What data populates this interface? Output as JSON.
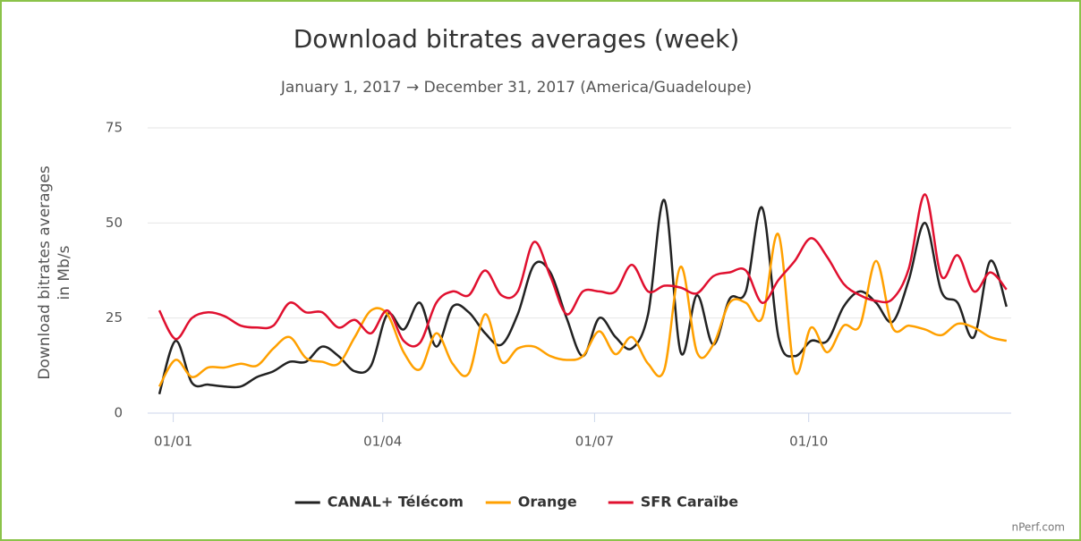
{
  "chart_data": {
    "type": "line",
    "title": "Download bitrates averages (week)",
    "subtitle": "January 1, 2017 → December 31, 2017 (America/Guadeloupe)",
    "ylabel": [
      "Download bitrates averages",
      "in Mb/s"
    ],
    "credit": "nPerf.com",
    "x": [
      -6,
      1,
      8,
      15,
      22,
      29,
      36,
      43,
      50,
      57,
      64,
      71,
      78,
      85,
      92,
      99,
      106,
      113,
      120,
      127,
      134,
      141,
      148,
      155,
      162,
      169,
      176,
      183,
      190,
      197,
      204,
      211,
      218,
      225,
      232,
      239,
      246,
      253,
      260,
      267,
      274,
      281,
      288,
      295,
      302,
      309,
      316,
      323,
      330,
      337,
      344,
      351,
      358
    ],
    "xlim": [
      -11,
      360
    ],
    "xticks": [
      {
        "value": 0,
        "label": "01/01"
      },
      {
        "value": 90,
        "label": "01/04"
      },
      {
        "value": 181,
        "label": "01/07"
      },
      {
        "value": 273,
        "label": "01/10"
      }
    ],
    "ylim": [
      0,
      75
    ],
    "yticks": [
      0,
      25,
      50,
      75
    ],
    "grid": true,
    "legend": "bottom",
    "series": [
      {
        "name": "CANAL+ Télécom",
        "color": "#222222",
        "values": [
          5,
          19,
          8,
          7.5,
          7,
          7,
          9.5,
          11,
          13.5,
          13.5,
          17.5,
          15,
          11,
          12.5,
          26,
          22,
          29,
          17.5,
          28,
          26.5,
          21,
          18,
          26,
          39,
          37,
          25,
          15,
          25,
          20,
          17,
          26,
          56,
          16,
          31,
          18,
          30,
          32,
          54,
          20,
          15,
          19,
          19,
          28,
          32,
          29,
          24,
          35,
          50,
          32,
          29,
          20,
          40,
          28
        ]
      },
      {
        "name": "Orange",
        "color": "#ffa000",
        "values": [
          7,
          14,
          9.5,
          12,
          12,
          13,
          12.5,
          17,
          20,
          14.5,
          13.5,
          13,
          20,
          27,
          26,
          16,
          11.5,
          21,
          13,
          10.5,
          26,
          13.5,
          17,
          17.5,
          15,
          14,
          15,
          21.5,
          15.5,
          20,
          13,
          11.5,
          38.5,
          16,
          18,
          29,
          29,
          25,
          47,
          11,
          22.5,
          16,
          23,
          23,
          40,
          22.5,
          23,
          22,
          20.5,
          23.5,
          22.5,
          20,
          19
        ]
      },
      {
        "name": "SFR Caraïbe",
        "color": "#e0102f",
        "values": [
          27,
          19.5,
          25,
          26.5,
          25.5,
          23,
          22.5,
          23,
          29,
          26.5,
          26.5,
          22.5,
          24.5,
          21,
          27,
          19,
          18.5,
          29,
          32,
          31,
          37.5,
          31,
          32,
          45,
          36,
          26,
          32,
          32,
          32,
          39,
          32,
          33.5,
          33,
          31.5,
          36,
          37,
          37.5,
          29,
          35,
          40,
          46,
          41,
          34,
          31,
          29.5,
          30,
          38,
          57.5,
          36,
          41.5,
          32,
          37,
          32.5
        ]
      }
    ]
  }
}
